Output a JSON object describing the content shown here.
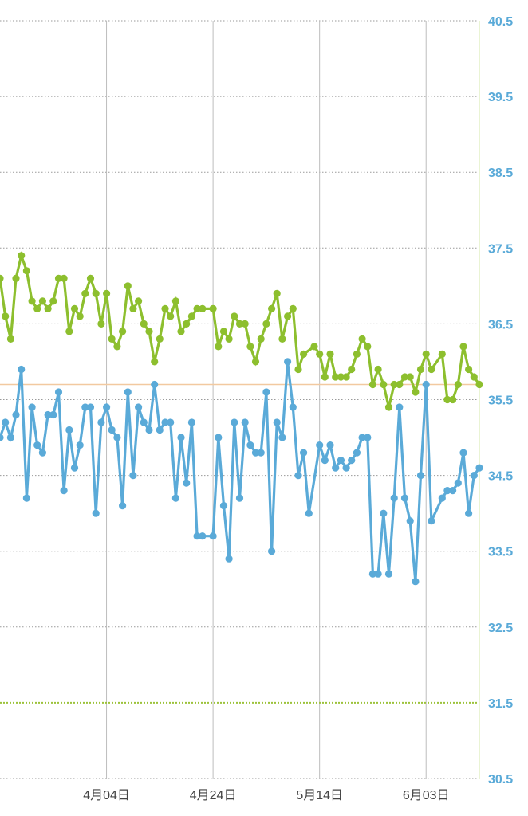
{
  "chart_data": {
    "type": "line",
    "y_ticks": [
      "30.5",
      "31.5",
      "32.5",
      "33.5",
      "34.5",
      "35.5",
      "36.5",
      "37.5",
      "38.5",
      "39.5",
      "40.5"
    ],
    "x_ticks": [
      {
        "label": "4月04日",
        "date": "2024-04-04"
      },
      {
        "label": "4月24日",
        "date": "2024-04-24"
      },
      {
        "label": "5月14日",
        "date": "2024-05-14"
      },
      {
        "label": "6月03日",
        "date": "2024-06-03"
      }
    ],
    "xlim": [
      "2024-03-15",
      "2024-06-13"
    ],
    "ylim": [
      30.5,
      40.5
    ],
    "grid": true,
    "reference_lines": [
      {
        "value": 35.7,
        "color": "#f2c9a0",
        "style": "solid"
      },
      {
        "value": 31.5,
        "color": "#9cc23a",
        "style": "dotted"
      }
    ],
    "series": [
      {
        "color": "#8dbf2e",
        "x": [
          "2024-03-15",
          "2024-03-16",
          "2024-03-17",
          "2024-03-18",
          "2024-03-19",
          "2024-03-20",
          "2024-03-21",
          "2024-03-22",
          "2024-03-23",
          "2024-03-24",
          "2024-03-25",
          "2024-03-26",
          "2024-03-27",
          "2024-03-28",
          "2024-03-29",
          "2024-03-30",
          "2024-03-31",
          "2024-04-01",
          "2024-04-02",
          "2024-04-03",
          "2024-04-04",
          "2024-04-05",
          "2024-04-06",
          "2024-04-07",
          "2024-04-08",
          "2024-04-09",
          "2024-04-10",
          "2024-04-11",
          "2024-04-12",
          "2024-04-13",
          "2024-04-14",
          "2024-04-15",
          "2024-04-16",
          "2024-04-17",
          "2024-04-18",
          "2024-04-19",
          "2024-04-20",
          "2024-04-21",
          "2024-04-22",
          "2024-04-24",
          "2024-04-25",
          "2024-04-26",
          "2024-04-27",
          "2024-04-28",
          "2024-04-29",
          "2024-04-30",
          "2024-05-01",
          "2024-05-02",
          "2024-05-03",
          "2024-05-04",
          "2024-05-05",
          "2024-05-06",
          "2024-05-07",
          "2024-05-08",
          "2024-05-09",
          "2024-05-10",
          "2024-05-11",
          "2024-05-13",
          "2024-05-14",
          "2024-05-15",
          "2024-05-16",
          "2024-05-17",
          "2024-05-18",
          "2024-05-19",
          "2024-05-20",
          "2024-05-21",
          "2024-05-22",
          "2024-05-23",
          "2024-05-24",
          "2024-05-25",
          "2024-05-26",
          "2024-05-27",
          "2024-05-28",
          "2024-05-29",
          "2024-05-30",
          "2024-05-31",
          "2024-06-01",
          "2024-06-02",
          "2024-06-03",
          "2024-06-04",
          "2024-06-06",
          "2024-06-07",
          "2024-06-08",
          "2024-06-09",
          "2024-06-10",
          "2024-06-11",
          "2024-06-12",
          "2024-06-13"
        ],
        "values": [
          37.1,
          36.6,
          36.3,
          37.1,
          37.4,
          37.2,
          36.8,
          36.7,
          36.8,
          36.7,
          36.8,
          37.1,
          37.1,
          36.4,
          36.7,
          36.6,
          36.9,
          37.1,
          36.9,
          36.5,
          36.9,
          36.3,
          36.2,
          36.4,
          37.0,
          36.7,
          36.8,
          36.5,
          36.4,
          36.0,
          36.3,
          36.7,
          36.6,
          36.8,
          36.4,
          36.5,
          36.6,
          36.7,
          36.7,
          36.7,
          36.2,
          36.4,
          36.3,
          36.6,
          36.5,
          36.5,
          36.2,
          36.0,
          36.3,
          36.5,
          36.7,
          36.9,
          36.3,
          36.6,
          36.7,
          35.9,
          36.1,
          36.2,
          36.1,
          35.8,
          36.1,
          35.8,
          35.8,
          35.8,
          35.9,
          36.1,
          36.3,
          36.2,
          35.7,
          35.9,
          35.7,
          35.4,
          35.7,
          35.7,
          35.8,
          35.8,
          35.6,
          35.9,
          36.1,
          35.9,
          36.1,
          35.5,
          35.5,
          35.7,
          36.2,
          35.9,
          35.8,
          35.7
        ]
      },
      {
        "color": "#5aaad8",
        "x": [
          "2024-03-15",
          "2024-03-16",
          "2024-03-17",
          "2024-03-18",
          "2024-03-19",
          "2024-03-20",
          "2024-03-21",
          "2024-03-22",
          "2024-03-23",
          "2024-03-24",
          "2024-03-25",
          "2024-03-26",
          "2024-03-27",
          "2024-03-28",
          "2024-03-29",
          "2024-03-30",
          "2024-03-31",
          "2024-04-01",
          "2024-04-02",
          "2024-04-03",
          "2024-04-04",
          "2024-04-05",
          "2024-04-06",
          "2024-04-07",
          "2024-04-08",
          "2024-04-09",
          "2024-04-10",
          "2024-04-11",
          "2024-04-12",
          "2024-04-13",
          "2024-04-14",
          "2024-04-15",
          "2024-04-16",
          "2024-04-17",
          "2024-04-18",
          "2024-04-19",
          "2024-04-20",
          "2024-04-21",
          "2024-04-22",
          "2024-04-24",
          "2024-04-25",
          "2024-04-26",
          "2024-04-27",
          "2024-04-28",
          "2024-04-29",
          "2024-04-30",
          "2024-05-01",
          "2024-05-02",
          "2024-05-03",
          "2024-05-04",
          "2024-05-05",
          "2024-05-06",
          "2024-05-07",
          "2024-05-08",
          "2024-05-09",
          "2024-05-10",
          "2024-05-11",
          "2024-05-12",
          "2024-05-14",
          "2024-05-15",
          "2024-05-16",
          "2024-05-17",
          "2024-05-18",
          "2024-05-19",
          "2024-05-20",
          "2024-05-21",
          "2024-05-22",
          "2024-05-23",
          "2024-05-24",
          "2024-05-25",
          "2024-05-26",
          "2024-05-27",
          "2024-05-28",
          "2024-05-29",
          "2024-05-30",
          "2024-05-31",
          "2024-06-01",
          "2024-06-02",
          "2024-06-03",
          "2024-06-04",
          "2024-06-06",
          "2024-06-07",
          "2024-06-08",
          "2024-06-09",
          "2024-06-10",
          "2024-06-11",
          "2024-06-12",
          "2024-06-13"
        ],
        "values": [
          35.0,
          35.2,
          35.0,
          35.3,
          35.9,
          34.2,
          35.4,
          34.9,
          34.8,
          35.3,
          35.3,
          35.6,
          34.3,
          35.1,
          34.6,
          34.9,
          35.4,
          35.4,
          34.0,
          35.2,
          35.4,
          35.1,
          35.0,
          34.1,
          35.6,
          34.5,
          35.4,
          35.2,
          35.1,
          35.7,
          35.1,
          35.2,
          35.2,
          34.2,
          35.0,
          34.4,
          35.2,
          33.7,
          33.7,
          33.7,
          35.0,
          34.1,
          33.4,
          35.2,
          34.2,
          35.2,
          34.9,
          34.8,
          34.8,
          35.6,
          33.5,
          35.2,
          35.0,
          36.0,
          35.4,
          34.5,
          34.8,
          34.0,
          34.9,
          34.7,
          34.9,
          34.6,
          34.7,
          34.6,
          34.7,
          34.8,
          35.0,
          35.0,
          33.2,
          33.2,
          34.0,
          33.2,
          34.2,
          35.4,
          34.2,
          33.9,
          33.1,
          34.5,
          35.7,
          33.9,
          34.2,
          34.3,
          34.3,
          34.4,
          34.8,
          34.0,
          34.5,
          34.6
        ]
      }
    ]
  }
}
